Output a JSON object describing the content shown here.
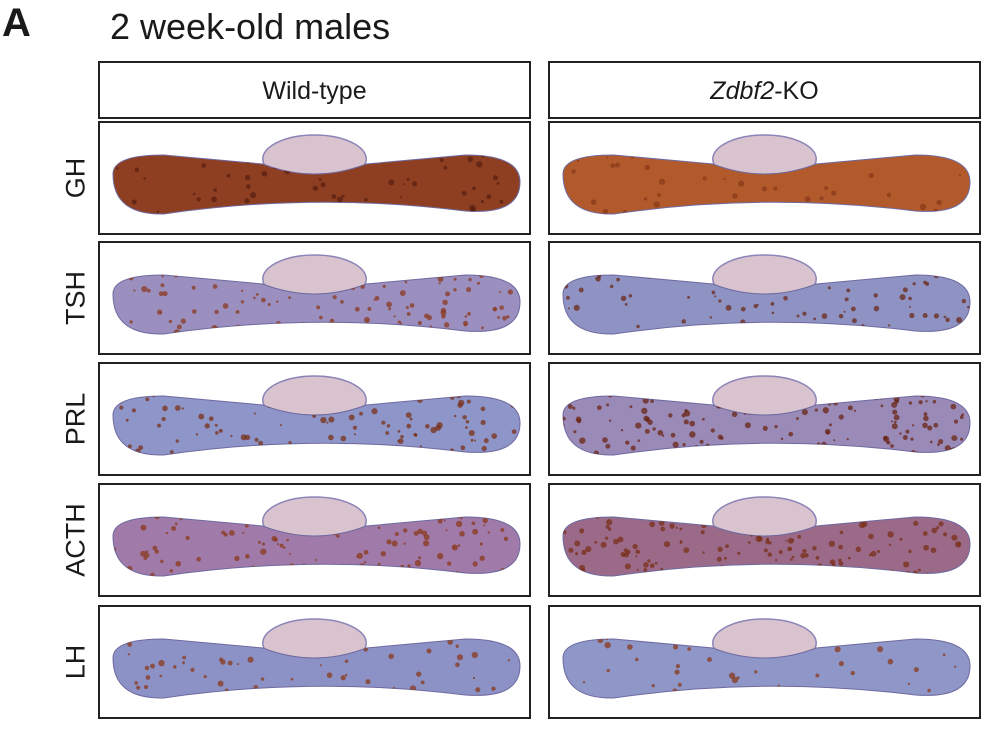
{
  "panel_label": "A",
  "title": "2 week-old males",
  "columns": [
    [
      {
        "text": "Wild-type"
      }
    ],
    [
      {
        "text": "Zdbf2",
        "italic": true
      },
      {
        "text": "-KO"
      }
    ]
  ],
  "rows": [
    {
      "label": "GH"
    },
    {
      "label": "TSH"
    },
    {
      "label": "PRL"
    },
    {
      "label": "ACTH"
    },
    {
      "label": "LH"
    }
  ]
}
